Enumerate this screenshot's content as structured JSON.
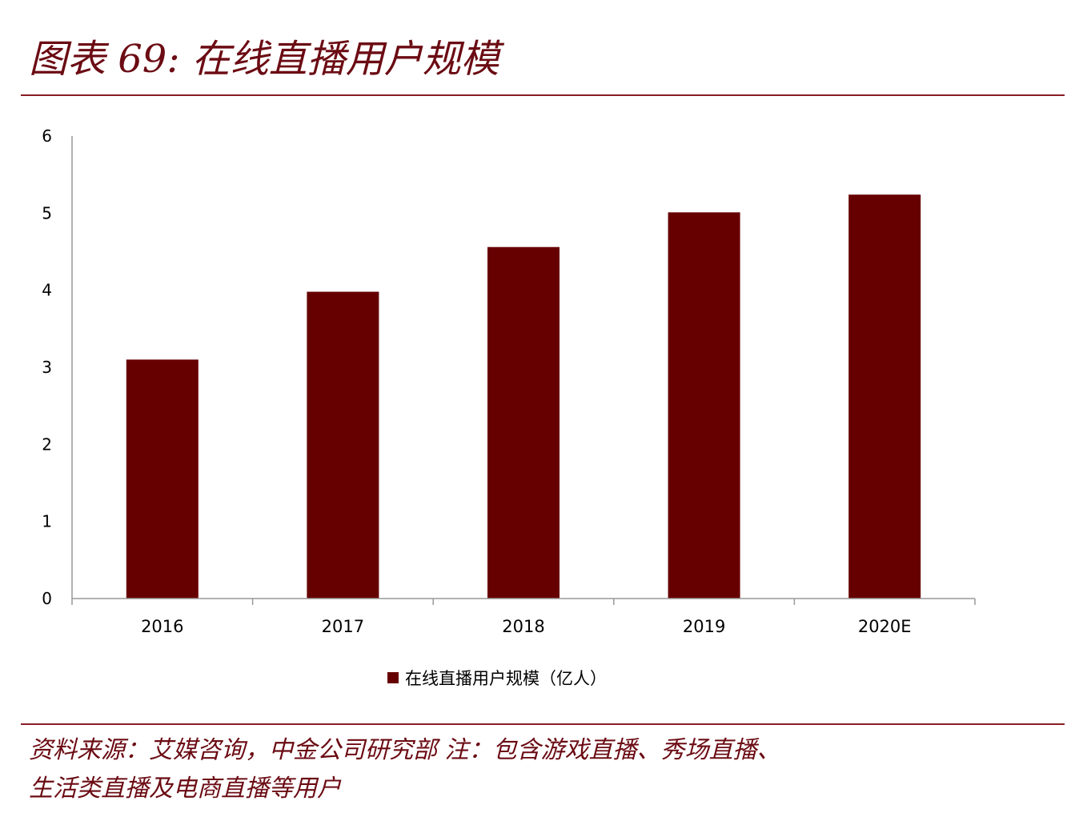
{
  "figure": {
    "title": "图表 69:  在线直播用户规模"
  },
  "chart_data": {
    "type": "bar",
    "categories": [
      "2016",
      "2017",
      "2018",
      "2019",
      "2020E"
    ],
    "series": [
      {
        "name": "在线直播用户规模（亿人）",
        "values": [
          3.1,
          3.98,
          4.56,
          5.01,
          5.24
        ]
      }
    ],
    "yticks": [
      "0",
      "1",
      "2",
      "3",
      "4",
      "5",
      "6"
    ],
    "ylim": [
      0,
      6
    ],
    "grid": false,
    "legend_position": "bottom",
    "bar_color": "#660000",
    "axis_color": "#999999"
  },
  "legend": {
    "label": "在线直播用户规模（亿人）"
  },
  "source": {
    "line1": "资料来源：艾媒咨询，中金公司研究部    注：包含游戏直播、秀场直播、",
    "line2": "生活类直播及电商直播等用户"
  },
  "colors": {
    "accent": "#6b0b13",
    "bar": "#660000"
  }
}
